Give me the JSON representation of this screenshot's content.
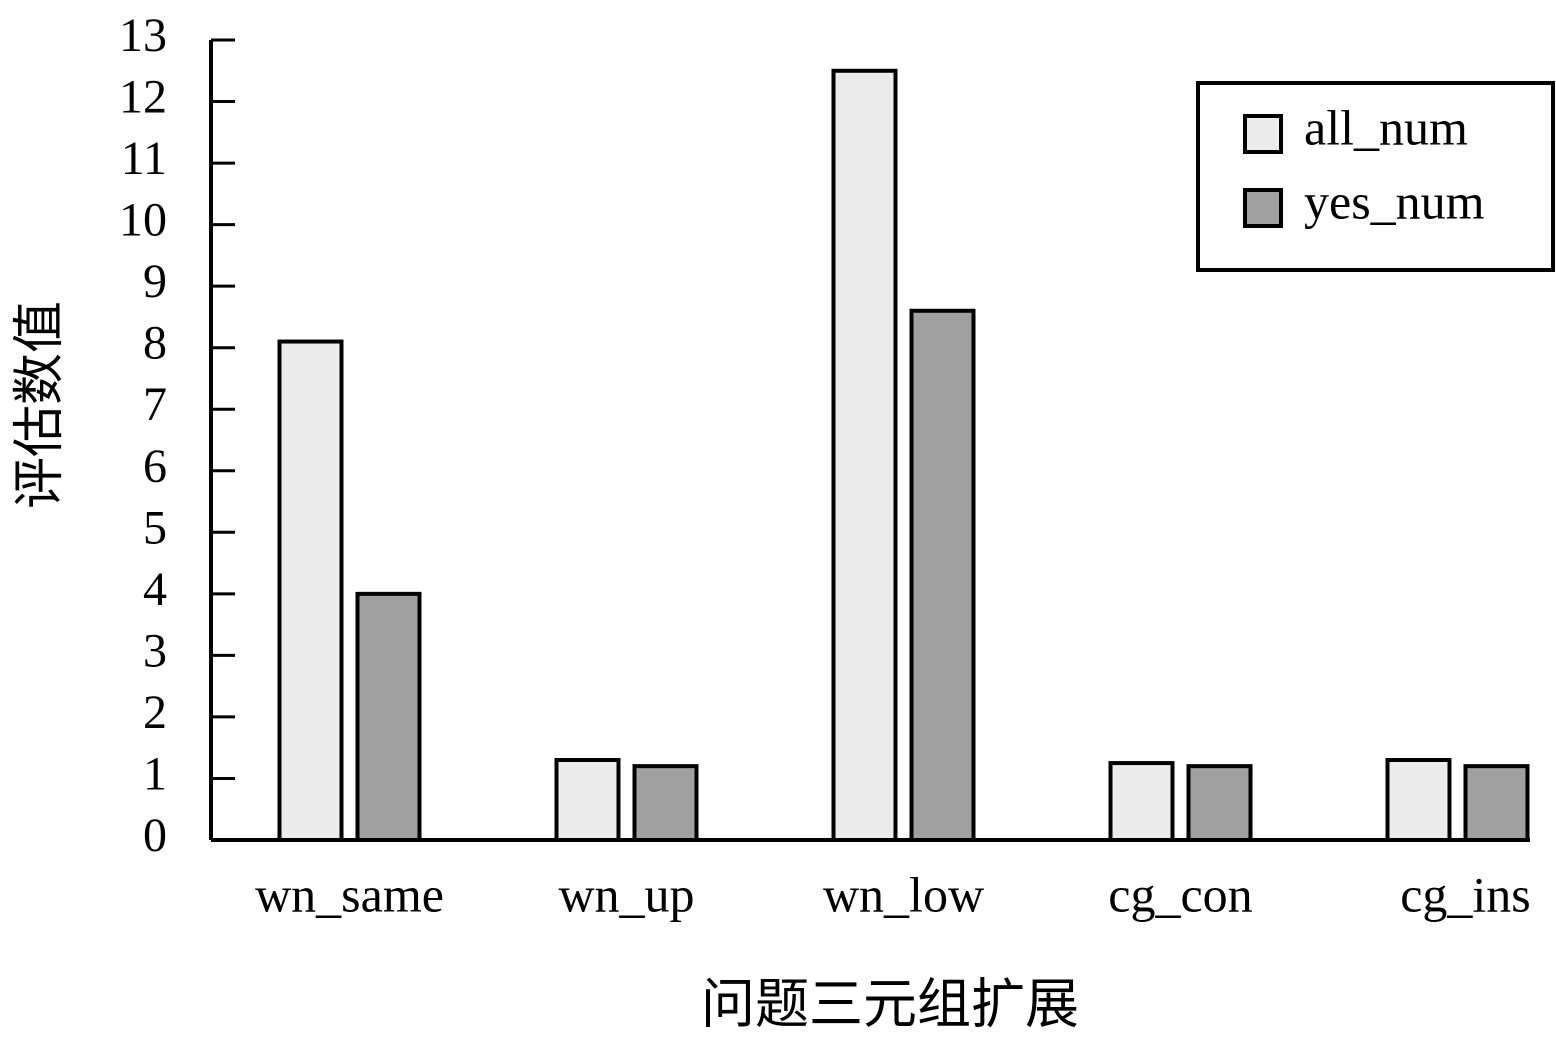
{
  "chart_data": {
    "type": "bar",
    "x_label": "问题三元组扩展",
    "y_label": "评估数值",
    "categories": [
      "wn_same",
      "wn_up",
      "wn_low",
      "cg_con",
      "cg_ins"
    ],
    "series": [
      {
        "name": "all_num",
        "color": "#ececec",
        "values": [
          8.1,
          1.3,
          12.5,
          1.25,
          1.3
        ]
      },
      {
        "name": "yes_num",
        "color": "#a0a0a0",
        "values": [
          4.0,
          1.2,
          8.6,
          1.2,
          1.2
        ]
      }
    ],
    "ylim": [
      0,
      13
    ],
    "yticks": [
      0,
      1,
      2,
      3,
      4,
      5,
      6,
      7,
      8,
      9,
      10,
      11,
      12,
      13
    ],
    "grid": false,
    "legend": "upper right"
  }
}
